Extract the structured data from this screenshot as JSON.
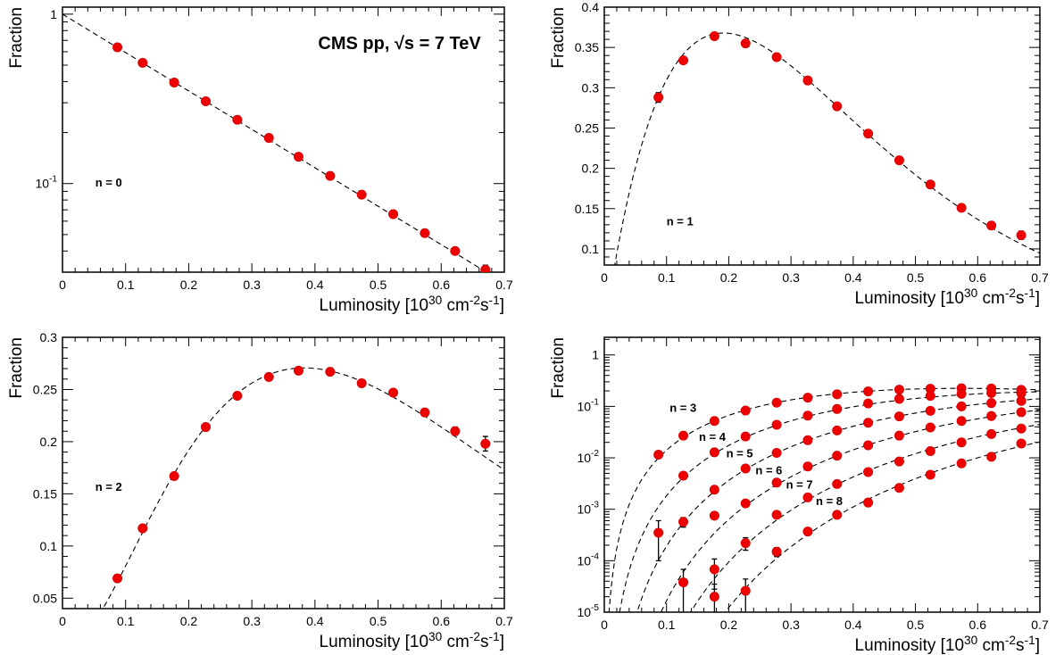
{
  "chart_data": [
    {
      "type": "scatter",
      "panel": "top-left",
      "scale": "log",
      "ylabel": "Fraction",
      "xlabel": "Luminosity [10<sup>30</sup> cm<sup>-2</sup>s<sup>-1</sup>]",
      "xlim": [
        0,
        0.7
      ],
      "ylim": [
        0.03,
        1.1
      ],
      "xticks": [
        "0",
        "0.1",
        "0.2",
        "0.3",
        "0.4",
        "0.5",
        "0.6",
        "0.7"
      ],
      "yticks": [
        {
          "value": 1,
          "label": "1"
        },
        {
          "value": 0.1,
          "label": "10<sup>-1</sup>"
        }
      ],
      "annotations": [
        {
          "text": "CMS pp, √s = 7 TeV",
          "x": 0.405,
          "y": 0.66,
          "style": "cms"
        },
        {
          "text": "n = 0",
          "x": 0.052,
          "y": 0.102,
          "style": "n"
        }
      ],
      "series": [
        {
          "fit": "poisson",
          "n": 0,
          "k": 5.22,
          "x": [
            0.087,
            0.127,
            0.177,
            0.227,
            0.277,
            0.327,
            0.374,
            0.424,
            0.474,
            0.524,
            0.574,
            0.622,
            0.67
          ],
          "y": [
            0.637,
            0.516,
            0.395,
            0.306,
            0.238,
            0.186,
            0.144,
            0.111,
            0.086,
            0.066,
            0.051,
            0.04,
            0.031
          ],
          "yerr": [
            0,
            0,
            0,
            0,
            0,
            0,
            0,
            0,
            0,
            0,
            0,
            0,
            0.002
          ]
        }
      ]
    },
    {
      "type": "scatter",
      "panel": "top-right",
      "scale": "linear",
      "ylabel": "Fraction",
      "xlabel": "Luminosity [10<sup>30</sup> cm<sup>-2</sup>s<sup>-1</sup>]",
      "xlim": [
        0,
        0.7
      ],
      "ylim": [
        0.08,
        0.4
      ],
      "xticks": [
        "0",
        "0.1",
        "0.2",
        "0.3",
        "0.4",
        "0.5",
        "0.6",
        "0.7"
      ],
      "yticks": [
        {
          "value": 0.1,
          "label": "0.1"
        },
        {
          "value": 0.15,
          "label": "0.15"
        },
        {
          "value": 0.2,
          "label": "0.2"
        },
        {
          "value": 0.25,
          "label": "0.25"
        },
        {
          "value": 0.3,
          "label": "0.3"
        },
        {
          "value": 0.35,
          "label": "0.35"
        },
        {
          "value": 0.4,
          "label": "0.4"
        }
      ],
      "annotations": [
        {
          "text": "n = 1",
          "x": 0.1,
          "y": 0.135,
          "style": "n"
        }
      ],
      "series": [
        {
          "fit": "poisson",
          "n": 1,
          "k": 5.22,
          "x": [
            0.087,
            0.127,
            0.177,
            0.227,
            0.277,
            0.327,
            0.374,
            0.424,
            0.474,
            0.524,
            0.574,
            0.622,
            0.67
          ],
          "y": [
            0.288,
            0.334,
            0.364,
            0.355,
            0.338,
            0.309,
            0.277,
            0.243,
            0.21,
            0.18,
            0.151,
            0.129,
            0.117
          ],
          "yerr": [
            0.006,
            0.003,
            0,
            0,
            0,
            0,
            0,
            0,
            0,
            0,
            0,
            0,
            0.005
          ]
        }
      ]
    },
    {
      "type": "scatter",
      "panel": "bottom-left",
      "scale": "linear",
      "ylabel": "Fraction",
      "xlabel": "Luminosity [10<sup>30</sup> cm<sup>-2</sup>s<sup>-1</sup>]",
      "xlim": [
        0,
        0.7
      ],
      "ylim": [
        0.04,
        0.3
      ],
      "xticks": [
        "0",
        "0.1",
        "0.2",
        "0.3",
        "0.4",
        "0.5",
        "0.6",
        "0.7"
      ],
      "yticks": [
        {
          "value": 0.05,
          "label": "0.05"
        },
        {
          "value": 0.1,
          "label": "0.1"
        },
        {
          "value": 0.15,
          "label": "0.15"
        },
        {
          "value": 0.2,
          "label": "0.2"
        },
        {
          "value": 0.25,
          "label": "0.25"
        },
        {
          "value": 0.3,
          "label": "0.3"
        }
      ],
      "annotations": [
        {
          "text": "n = 2",
          "x": 0.052,
          "y": 0.157,
          "style": "n"
        }
      ],
      "series": [
        {
          "fit": "poisson",
          "n": 2,
          "k": 5.22,
          "x": [
            0.087,
            0.127,
            0.177,
            0.227,
            0.277,
            0.327,
            0.374,
            0.424,
            0.474,
            0.524,
            0.574,
            0.622,
            0.67
          ],
          "y": [
            0.069,
            0.117,
            0.167,
            0.214,
            0.244,
            0.262,
            0.268,
            0.267,
            0.256,
            0.247,
            0.228,
            0.21,
            0.198
          ],
          "yerr": [
            0,
            0,
            0,
            0,
            0,
            0,
            0,
            0,
            0,
            0,
            0,
            0.004,
            0.007
          ]
        }
      ]
    },
    {
      "type": "scatter",
      "panel": "bottom-right",
      "scale": "log",
      "ylabel": "Fraction",
      "xlabel": "Luminosity [10<sup>30</sup> cm<sup>-2</sup>s<sup>-1</sup>]",
      "xlim": [
        0,
        0.7
      ],
      "ylim": [
        1e-05,
        2.2
      ],
      "xticks": [
        "0",
        "0.1",
        "0.2",
        "0.3",
        "0.4",
        "0.5",
        "0.6",
        "0.7"
      ],
      "yticks": [
        {
          "value": 1,
          "label": "1"
        },
        {
          "value": 0.1,
          "label": "10<sup>-1</sup>"
        },
        {
          "value": 0.01,
          "label": "10<sup>-2</sup>"
        },
        {
          "value": 0.001,
          "label": "10<sup>-3</sup>"
        },
        {
          "value": 0.0001,
          "label": "10<sup>-4</sup>"
        },
        {
          "value": 1e-05,
          "label": "10<sup>-5</sup>"
        }
      ],
      "annotations": [
        {
          "text": "n = 3",
          "x": 0.105,
          "y": 0.095,
          "style": "n"
        },
        {
          "text": "n = 4",
          "x": 0.152,
          "y": 0.026,
          "style": "n"
        },
        {
          "text": "n = 5",
          "x": 0.196,
          "y": 0.0125,
          "style": "n"
        },
        {
          "text": "n = 6",
          "x": 0.243,
          "y": 0.0058,
          "style": "n"
        },
        {
          "text": "n = 7",
          "x": 0.292,
          "y": 0.0031,
          "style": "n"
        },
        {
          "text": "n = 8",
          "x": 0.34,
          "y": 0.00148,
          "style": "n"
        }
      ],
      "series": [
        {
          "fit": "poisson",
          "n": 3,
          "k": 5.22,
          "x": [
            0.087,
            0.127,
            0.177,
            0.227,
            0.277,
            0.327,
            0.374,
            0.424,
            0.474,
            0.524,
            0.574,
            0.622,
            0.67
          ],
          "y": [
            0.0115,
            0.027,
            0.052,
            0.083,
            0.118,
            0.148,
            0.172,
            0.195,
            0.212,
            0.22,
            0.225,
            0.223,
            0.21
          ],
          "yerr": [
            0,
            0,
            0,
            0,
            0,
            0,
            0,
            0,
            0,
            0,
            0,
            0,
            0
          ]
        },
        {
          "fit": "poisson",
          "n": 4,
          "k": 5.22,
          "x": [
            0.127,
            0.177,
            0.227,
            0.277,
            0.327,
            0.374,
            0.424,
            0.474,
            0.524,
            0.574,
            0.622,
            0.67
          ],
          "y": [
            0.0045,
            0.0128,
            0.026,
            0.044,
            0.066,
            0.089,
            0.114,
            0.14,
            0.16,
            0.175,
            0.182,
            0.18
          ],
          "yerr": [
            0,
            0,
            0,
            0,
            0,
            0,
            0,
            0,
            0,
            0,
            0,
            0
          ]
        },
        {
          "fit": "poisson",
          "n": 5,
          "k": 5.22,
          "x": [
            0.087,
            0.127,
            0.177,
            0.227,
            0.277,
            0.327,
            0.374,
            0.424,
            0.474,
            0.524,
            0.574,
            0.622,
            0.67
          ],
          "y": [
            0.00035,
            0.00057,
            0.0024,
            0.0062,
            0.0125,
            0.022,
            0.034,
            0.048,
            0.064,
            0.082,
            0.1,
            0.116,
            0.128
          ],
          "yerr": [
            0.00025,
            0.00012,
            0,
            0,
            0,
            0,
            0,
            0,
            0,
            0,
            0,
            0,
            0
          ]
        },
        {
          "fit": "poisson",
          "n": 6,
          "k": 5.22,
          "x": [
            0.127,
            0.177,
            0.227,
            0.277,
            0.327,
            0.374,
            0.424,
            0.474,
            0.524,
            0.574,
            0.622,
            0.67
          ],
          "y": [
            3.8e-05,
            0.00075,
            0.0013,
            0.0033,
            0.0068,
            0.011,
            0.0175,
            0.027,
            0.039,
            0.052,
            0.065,
            0.077
          ],
          "yerr": [
            3e-05,
            0,
            0,
            0,
            0,
            0,
            0,
            0,
            0,
            0,
            0,
            0
          ]
        },
        {
          "fit": "poisson",
          "n": 7,
          "k": 5.22,
          "x": [
            0.177,
            0.227,
            0.277,
            0.327,
            0.374,
            0.424,
            0.474,
            0.524,
            0.574,
            0.622,
            0.67
          ],
          "y": [
            6.8e-05,
            0.00022,
            0.00078,
            0.0017,
            0.0031,
            0.0053,
            0.0085,
            0.0135,
            0.02,
            0.029,
            0.037
          ],
          "yerr": [
            4e-05,
            6e-05,
            0,
            0,
            0,
            0,
            0,
            0,
            0,
            0,
            0
          ]
        },
        {
          "fit": "poisson",
          "n": 8,
          "k": 5.22,
          "x": [
            0.177,
            0.227,
            0.277,
            0.327,
            0.374,
            0.424,
            0.474,
            0.524,
            0.574,
            0.622,
            0.67
          ],
          "y": [
            2e-05,
            2.6e-05,
            0.00015,
            0.00037,
            0.00078,
            0.00135,
            0.0026,
            0.0047,
            0.0078,
            0.0105,
            0.019
          ],
          "yerr": [
            1.5e-05,
            1.8e-05,
            3e-05,
            0,
            0,
            0,
            0,
            0,
            0,
            0,
            0
          ]
        }
      ]
    }
  ]
}
